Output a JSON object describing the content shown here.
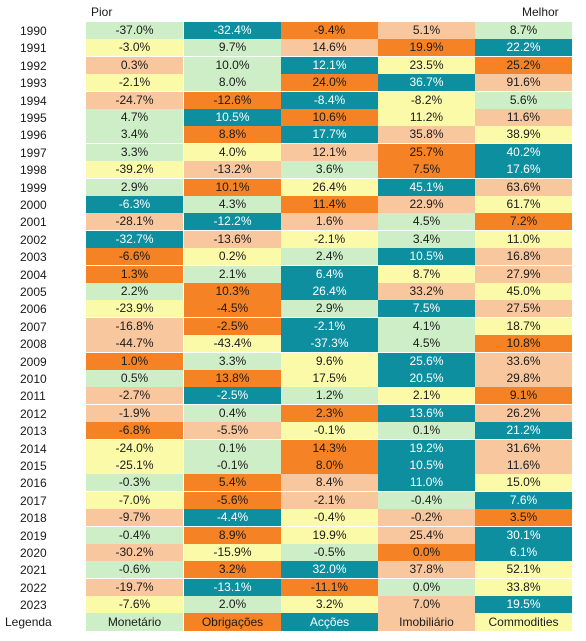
{
  "header": {
    "left_label": "Pior",
    "right_label": "Melhor"
  },
  "legend": {
    "label": "Legenda",
    "items": [
      {
        "key": "Monetario",
        "label": "Monetário",
        "color": "#cdeec6"
      },
      {
        "key": "Obrigacoes",
        "label": "Obrigações",
        "color": "#f58224"
      },
      {
        "key": "Accoes",
        "label": "Acções",
        "color": "#0e8fa0"
      },
      {
        "key": "Imobiliario",
        "label": "Imobiliário",
        "color": "#f9c79e"
      },
      {
        "key": "Commodities",
        "label": "Commodities",
        "color": "#fbfaa8"
      }
    ]
  },
  "chart_data": {
    "type": "table",
    "description_order": "Each year's returns ranked from worst (left) to best (right); cell color indicates asset class",
    "rows": [
      {
        "year": "1990",
        "cells": [
          [
            "-37.0%",
            "Monetario"
          ],
          [
            "-32.4%",
            "Accoes"
          ],
          [
            "-9.4%",
            "Obrigacoes"
          ],
          [
            "5.1%",
            "Imobiliario"
          ],
          [
            "8.7%",
            "Monetario"
          ]
        ]
      },
      {
        "year": "1991",
        "cells": [
          [
            "-3.0%",
            "Commodities"
          ],
          [
            "9.7%",
            "Monetario"
          ],
          [
            "14.6%",
            "Imobiliario"
          ],
          [
            "19.9%",
            "Obrigacoes"
          ],
          [
            "22.2%",
            "Accoes"
          ]
        ]
      },
      {
        "year": "1992",
        "cells": [
          [
            "0.3%",
            "Imobiliario"
          ],
          [
            "10.0%",
            "Monetario"
          ],
          [
            "12.1%",
            "Accoes"
          ],
          [
            "23.5%",
            "Commodities"
          ],
          [
            "25.2%",
            "Obrigacoes"
          ]
        ]
      },
      {
        "year": "1993",
        "cells": [
          [
            "-2.1%",
            "Commodities"
          ],
          [
            "8.0%",
            "Monetario"
          ],
          [
            "24.0%",
            "Obrigacoes"
          ],
          [
            "36.7%",
            "Accoes"
          ],
          [
            "91.6%",
            "Imobiliario"
          ]
        ]
      },
      {
        "year": "1994",
        "cells": [
          [
            "-24.7%",
            "Imobiliario"
          ],
          [
            "-12.6%",
            "Obrigacoes"
          ],
          [
            "-8.4%",
            "Accoes"
          ],
          [
            "-8.2%",
            "Commodities"
          ],
          [
            "5.6%",
            "Monetario"
          ]
        ]
      },
      {
        "year": "1995",
        "cells": [
          [
            "4.7%",
            "Monetario"
          ],
          [
            "10.5%",
            "Accoes"
          ],
          [
            "10.6%",
            "Obrigacoes"
          ],
          [
            "11.2%",
            "Commodities"
          ],
          [
            "11.6%",
            "Imobiliario"
          ]
        ]
      },
      {
        "year": "1996",
        "cells": [
          [
            "3.4%",
            "Monetario"
          ],
          [
            "8.8%",
            "Obrigacoes"
          ],
          [
            "17.7%",
            "Accoes"
          ],
          [
            "35.8%",
            "Imobiliario"
          ],
          [
            "38.9%",
            "Commodities"
          ]
        ]
      },
      {
        "year": "1997",
        "cells": [
          [
            "3.3%",
            "Monetario"
          ],
          [
            "4.0%",
            "Commodities"
          ],
          [
            "12.1%",
            "Imobiliario"
          ],
          [
            "25.7%",
            "Obrigacoes"
          ],
          [
            "40.2%",
            "Accoes"
          ]
        ]
      },
      {
        "year": "1998",
        "cells": [
          [
            "-39.2%",
            "Commodities"
          ],
          [
            "-13.2%",
            "Imobiliario"
          ],
          [
            "3.6%",
            "Monetario"
          ],
          [
            "7.5%",
            "Obrigacoes"
          ],
          [
            "17.6%",
            "Accoes"
          ]
        ]
      },
      {
        "year": "1999",
        "cells": [
          [
            "2.9%",
            "Monetario"
          ],
          [
            "10.1%",
            "Obrigacoes"
          ],
          [
            "26.4%",
            "Commodities"
          ],
          [
            "45.1%",
            "Accoes"
          ],
          [
            "63.6%",
            "Imobiliario"
          ]
        ]
      },
      {
        "year": "2000",
        "cells": [
          [
            "-6.3%",
            "Accoes"
          ],
          [
            "4.3%",
            "Monetario"
          ],
          [
            "11.4%",
            "Obrigacoes"
          ],
          [
            "22.9%",
            "Imobiliario"
          ],
          [
            "61.7%",
            "Commodities"
          ]
        ]
      },
      {
        "year": "2001",
        "cells": [
          [
            "-28.1%",
            "Imobiliario"
          ],
          [
            "-12.2%",
            "Accoes"
          ],
          [
            "1.6%",
            "Imobiliario"
          ],
          [
            "4.5%",
            "Monetario"
          ],
          [
            "7.2%",
            "Obrigacoes"
          ]
        ]
      },
      {
        "year": "2002",
        "cells": [
          [
            "-32.7%",
            "Accoes"
          ],
          [
            "-13.6%",
            "Imobiliario"
          ],
          [
            "-2.1%",
            "Commodities"
          ],
          [
            "3.4%",
            "Monetario"
          ],
          [
            "11.0%",
            "Commodities"
          ]
        ]
      },
      {
        "year": "2003",
        "cells": [
          [
            "-6.6%",
            "Obrigacoes"
          ],
          [
            "0.2%",
            "Commodities"
          ],
          [
            "2.4%",
            "Monetario"
          ],
          [
            "10.5%",
            "Accoes"
          ],
          [
            "16.8%",
            "Imobiliario"
          ]
        ]
      },
      {
        "year": "2004",
        "cells": [
          [
            "1.3%",
            "Obrigacoes"
          ],
          [
            "2.1%",
            "Monetario"
          ],
          [
            "6.4%",
            "Accoes"
          ],
          [
            "8.7%",
            "Commodities"
          ],
          [
            "27.9%",
            "Imobiliario"
          ]
        ]
      },
      {
        "year": "2005",
        "cells": [
          [
            "2.2%",
            "Monetario"
          ],
          [
            "10.3%",
            "Obrigacoes"
          ],
          [
            "26.4%",
            "Accoes"
          ],
          [
            "33.2%",
            "Imobiliario"
          ],
          [
            "45.0%",
            "Commodities"
          ]
        ]
      },
      {
        "year": "2006",
        "cells": [
          [
            "-23.9%",
            "Commodities"
          ],
          [
            "-4.5%",
            "Obrigacoes"
          ],
          [
            "2.9%",
            "Monetario"
          ],
          [
            "7.5%",
            "Accoes"
          ],
          [
            "27.5%",
            "Imobiliario"
          ]
        ]
      },
      {
        "year": "2007",
        "cells": [
          [
            "-16.8%",
            "Imobiliario"
          ],
          [
            "-2.5%",
            "Obrigacoes"
          ],
          [
            "-2.1%",
            "Accoes"
          ],
          [
            "4.1%",
            "Monetario"
          ],
          [
            "18.7%",
            "Commodities"
          ]
        ]
      },
      {
        "year": "2008",
        "cells": [
          [
            "-44.7%",
            "Imobiliario"
          ],
          [
            "-43.4%",
            "Commodities"
          ],
          [
            "-37.3%",
            "Accoes"
          ],
          [
            "4.5%",
            "Monetario"
          ],
          [
            "10.8%",
            "Obrigacoes"
          ]
        ]
      },
      {
        "year": "2009",
        "cells": [
          [
            "1.0%",
            "Obrigacoes"
          ],
          [
            "3.3%",
            "Monetario"
          ],
          [
            "9.6%",
            "Commodities"
          ],
          [
            "25.6%",
            "Accoes"
          ],
          [
            "33.6%",
            "Imobiliario"
          ]
        ]
      },
      {
        "year": "2010",
        "cells": [
          [
            "0.5%",
            "Monetario"
          ],
          [
            "13.8%",
            "Obrigacoes"
          ],
          [
            "17.5%",
            "Commodities"
          ],
          [
            "20.5%",
            "Accoes"
          ],
          [
            "29.8%",
            "Imobiliario"
          ]
        ]
      },
      {
        "year": "2011",
        "cells": [
          [
            "-2.7%",
            "Imobiliario"
          ],
          [
            "-2.5%",
            "Accoes"
          ],
          [
            "1.2%",
            "Monetario"
          ],
          [
            "2.1%",
            "Commodities"
          ],
          [
            "9.1%",
            "Obrigacoes"
          ]
        ]
      },
      {
        "year": "2012",
        "cells": [
          [
            "-1.9%",
            "Imobiliario"
          ],
          [
            "0.4%",
            "Monetario"
          ],
          [
            "2.3%",
            "Obrigacoes"
          ],
          [
            "13.6%",
            "Accoes"
          ],
          [
            "26.2%",
            "Imobiliario"
          ]
        ]
      },
      {
        "year": "2013",
        "cells": [
          [
            "-6.8%",
            "Obrigacoes"
          ],
          [
            "-5.5%",
            "Imobiliario"
          ],
          [
            "-0.1%",
            "Commodities"
          ],
          [
            "0.1%",
            "Monetario"
          ],
          [
            "21.2%",
            "Accoes"
          ]
        ]
      },
      {
        "year": "2014",
        "cells": [
          [
            "-24.0%",
            "Commodities"
          ],
          [
            "0.1%",
            "Monetario"
          ],
          [
            "14.3%",
            "Obrigacoes"
          ],
          [
            "19.2%",
            "Accoes"
          ],
          [
            "31.6%",
            "Imobiliario"
          ]
        ]
      },
      {
        "year": "2015",
        "cells": [
          [
            "-25.1%",
            "Commodities"
          ],
          [
            "-0.1%",
            "Monetario"
          ],
          [
            "8.0%",
            "Obrigacoes"
          ],
          [
            "10.5%",
            "Accoes"
          ],
          [
            "11.6%",
            "Imobiliario"
          ]
        ]
      },
      {
        "year": "2016",
        "cells": [
          [
            "-0.3%",
            "Monetario"
          ],
          [
            "5.4%",
            "Obrigacoes"
          ],
          [
            "8.4%",
            "Imobiliario"
          ],
          [
            "11.0%",
            "Accoes"
          ],
          [
            "15.0%",
            "Commodities"
          ]
        ]
      },
      {
        "year": "2017",
        "cells": [
          [
            "-7.0%",
            "Commodities"
          ],
          [
            "-5.6%",
            "Obrigacoes"
          ],
          [
            "-2.1%",
            "Imobiliario"
          ],
          [
            "-0.4%",
            "Monetario"
          ],
          [
            "7.6%",
            "Accoes"
          ]
        ]
      },
      {
        "year": "2018",
        "cells": [
          [
            "-9.7%",
            "Imobiliario"
          ],
          [
            "-4.4%",
            "Accoes"
          ],
          [
            "-0.4%",
            "Commodities"
          ],
          [
            "-0.2%",
            "Imobiliario"
          ],
          [
            "3.5%",
            "Obrigacoes"
          ]
        ]
      },
      {
        "year": "2019",
        "cells": [
          [
            "-0.4%",
            "Monetario"
          ],
          [
            "8.9%",
            "Obrigacoes"
          ],
          [
            "19.9%",
            "Commodities"
          ],
          [
            "25.4%",
            "Imobiliario"
          ],
          [
            "30.1%",
            "Accoes"
          ]
        ]
      },
      {
        "year": "2020",
        "cells": [
          [
            "-30.2%",
            "Imobiliario"
          ],
          [
            "-15.9%",
            "Commodities"
          ],
          [
            "-0.5%",
            "Monetario"
          ],
          [
            "0.0%",
            "Obrigacoes"
          ],
          [
            "6.1%",
            "Accoes"
          ]
        ]
      },
      {
        "year": "2021",
        "cells": [
          [
            "-0.6%",
            "Monetario"
          ],
          [
            "3.2%",
            "Obrigacoes"
          ],
          [
            "32.0%",
            "Accoes"
          ],
          [
            "37.8%",
            "Imobiliario"
          ],
          [
            "52.1%",
            "Commodities"
          ]
        ]
      },
      {
        "year": "2022",
        "cells": [
          [
            "-19.7%",
            "Imobiliario"
          ],
          [
            "-13.1%",
            "Accoes"
          ],
          [
            "-11.1%",
            "Obrigacoes"
          ],
          [
            "0.0%",
            "Monetario"
          ],
          [
            "33.8%",
            "Commodities"
          ]
        ]
      },
      {
        "year": "2023",
        "cells": [
          [
            "-7.6%",
            "Commodities"
          ],
          [
            "2.0%",
            "Monetario"
          ],
          [
            "3.2%",
            "Commodities"
          ],
          [
            "7.0%",
            "Imobiliario"
          ],
          [
            "19.5%",
            "Accoes"
          ]
        ]
      }
    ]
  }
}
